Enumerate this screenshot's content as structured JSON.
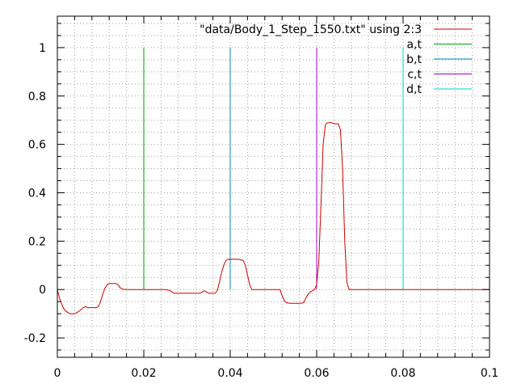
{
  "chart_data": {
    "type": "line",
    "title": "",
    "xlabel": "",
    "ylabel": "",
    "xlim": [
      0,
      0.1
    ],
    "ylim": [
      -0.28,
      1.13
    ],
    "grid": true,
    "legend_position": "top-right",
    "x_ticks": [
      {
        "value": 0,
        "label": "0"
      },
      {
        "value": 0.02,
        "label": "0.02"
      },
      {
        "value": 0.04,
        "label": "0.04"
      },
      {
        "value": 0.06,
        "label": "0.06"
      },
      {
        "value": 0.08,
        "label": "0.08"
      },
      {
        "value": 0.1,
        "label": "0.1"
      }
    ],
    "y_ticks": [
      {
        "value": -0.2,
        "label": "-0.2"
      },
      {
        "value": 0,
        "label": "0"
      },
      {
        "value": 0.2,
        "label": "0.2"
      },
      {
        "value": 0.4,
        "label": "0.4"
      },
      {
        "value": 0.6,
        "label": "0.6"
      },
      {
        "value": 0.8,
        "label": "0.8"
      },
      {
        "value": 1,
        "label": "1"
      }
    ],
    "series": [
      {
        "name": "\"data/Body_1_Step_1550.txt\" using 2:3",
        "color": "#cc0000",
        "x": [
          0,
          0.0005,
          0.001,
          0.0015,
          0.002,
          0.003,
          0.004,
          0.0045,
          0.005,
          0.006,
          0.0065,
          0.007,
          0.008,
          0.009,
          0.0095,
          0.01,
          0.0105,
          0.011,
          0.0115,
          0.012,
          0.013,
          0.0135,
          0.014,
          0.0145,
          0.015,
          0.016,
          0.02,
          0.025,
          0.026,
          0.027,
          0.03,
          0.033,
          0.0335,
          0.034,
          0.0345,
          0.035,
          0.036,
          0.0365,
          0.037,
          0.0375,
          0.038,
          0.0385,
          0.039,
          0.0395,
          0.04,
          0.041,
          0.042,
          0.043,
          0.0435,
          0.044,
          0.0445,
          0.045,
          0.046,
          0.049,
          0.0515,
          0.052,
          0.0525,
          0.053,
          0.054,
          0.056,
          0.057,
          0.0575,
          0.058,
          0.0585,
          0.059,
          0.0595,
          0.06,
          0.0605,
          0.061,
          0.0615,
          0.062,
          0.0625,
          0.063,
          0.0635,
          0.064,
          0.065,
          0.0655,
          0.066,
          0.0665,
          0.067,
          0.0675,
          0.068,
          0.07,
          0.08,
          0.09,
          0.1
        ],
        "y": [
          0,
          -0.035,
          -0.06,
          -0.08,
          -0.09,
          -0.1,
          -0.1,
          -0.095,
          -0.09,
          -0.075,
          -0.07,
          -0.075,
          -0.075,
          -0.075,
          -0.07,
          -0.05,
          -0.02,
          0.005,
          0.02,
          0.025,
          0.025,
          0.025,
          0.02,
          0.008,
          0.002,
          0,
          0,
          0,
          -0.004,
          -0.015,
          -0.015,
          -0.015,
          -0.01,
          -0.005,
          -0.01,
          -0.015,
          -0.015,
          -0.015,
          -0.005,
          0.03,
          0.07,
          0.1,
          0.12,
          0.125,
          0.125,
          0.125,
          0.125,
          0.12,
          0.1,
          0.06,
          0.02,
          0,
          0,
          0,
          0,
          -0.025,
          -0.045,
          -0.055,
          -0.057,
          -0.057,
          -0.055,
          -0.035,
          -0.02,
          -0.01,
          -0.005,
          0,
          0.02,
          0.12,
          0.35,
          0.6,
          0.68,
          0.69,
          0.69,
          0.69,
          0.685,
          0.685,
          0.66,
          0.5,
          0.2,
          0.03,
          0,
          0,
          0,
          0,
          0,
          0
        ]
      },
      {
        "name": "a,t",
        "color": "#009e00",
        "x": [
          0.02,
          0.02
        ],
        "y": [
          0,
          1
        ]
      },
      {
        "name": "b,t",
        "color": "#0087c0",
        "x": [
          0.04,
          0.04
        ],
        "y": [
          0,
          1
        ]
      },
      {
        "name": "c,t",
        "color": "#a000c8",
        "x": [
          0.06,
          0.06
        ],
        "y": [
          0,
          1
        ]
      },
      {
        "name": "d,t",
        "color": "#00d0d0",
        "x": [
          0.08,
          0.08
        ],
        "y": [
          0,
          1
        ]
      }
    ]
  }
}
